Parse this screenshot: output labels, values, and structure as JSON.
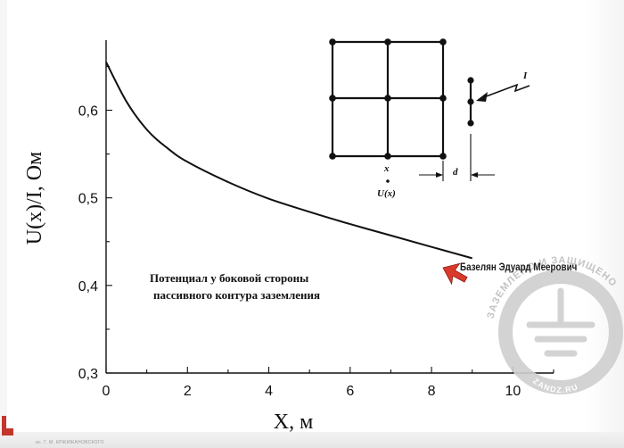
{
  "chart_data": {
    "type": "line",
    "x": [
      0,
      0.5,
      1,
      1.5,
      2,
      3,
      4,
      5,
      6,
      7,
      8,
      9
    ],
    "series": [
      {
        "values": [
          0.655,
          0.61,
          0.578,
          0.557,
          0.541,
          0.518,
          0.499,
          0.484,
          0.47,
          0.457,
          0.444,
          0.431
        ]
      }
    ],
    "xlabel": "X,  м",
    "ylabel": "U(x)/I,  Ом",
    "xlim": [
      0,
      11
    ],
    "ylim": [
      0.3,
      0.68
    ],
    "xticks": [
      0,
      2,
      4,
      6,
      8,
      10
    ],
    "xtick_labels": [
      "0",
      "2",
      "4",
      "6",
      "8",
      "10"
    ],
    "yticks": [
      0.3,
      0.4,
      0.5,
      0.6
    ],
    "ytick_labels": [
      "0,3",
      "0,4",
      "0,5",
      "0,6"
    ],
    "grid": false,
    "caption": [
      "Потенциал у боковой стороны",
      "пассивного контура заземления"
    ]
  },
  "inset": {
    "label_x": "x",
    "label_u": "U(x)",
    "label_d": "d",
    "label_i": "I"
  },
  "author": "Базелян Эдуард Меерович",
  "watermark": {
    "top_text": "ЗАЗЕМЛЕНО И ЗАЩИЩЕНО",
    "bottom_text": "ZANDZ.RU"
  },
  "colors": {
    "curve": "#111111",
    "pointer": "#d93a2b",
    "watermark": "#c8c8c8"
  },
  "footer_text": "ac. Г. М. КРЖИЖАНОВСКОГО"
}
